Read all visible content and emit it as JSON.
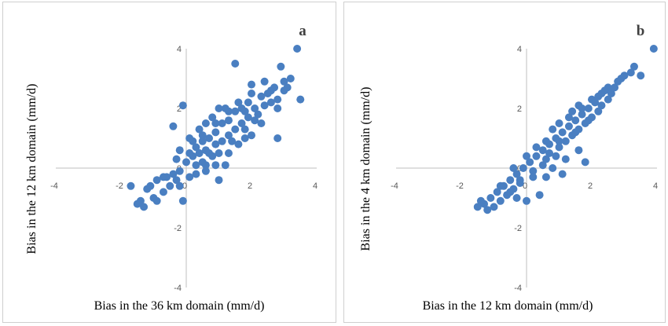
{
  "colors": {
    "marker": "#4a7fc1",
    "axis": "#bfbfbf",
    "border": "#cfcfcf"
  },
  "chart_data": [
    {
      "type": "scatter",
      "panel_label": "a",
      "xlabel": "Bias in the 36 km domain (mm/d)",
      "ylabel": "Bias in the 12 km domain (mm/d)",
      "xlim": [
        -4,
        4
      ],
      "ylim": [
        -4,
        4
      ],
      "xticks": [
        "-4",
        "-2",
        "0",
        "2",
        "4"
      ],
      "yticks": [
        "-4",
        "-2",
        "0",
        "2",
        "4"
      ],
      "grid": false,
      "legend": "none",
      "points": [
        [
          3.4,
          4.0
        ],
        [
          2.9,
          3.4
        ],
        [
          1.5,
          3.5
        ],
        [
          3.5,
          2.3
        ],
        [
          2.8,
          1.0
        ],
        [
          1.8,
          1.0
        ],
        [
          2.6,
          2.6
        ],
        [
          2.3,
          2.4
        ],
        [
          3.0,
          2.9
        ],
        [
          2.0,
          2.5
        ],
        [
          -0.1,
          2.1
        ],
        [
          -0.4,
          1.4
        ],
        [
          0.6,
          0.6
        ],
        [
          0.8,
          0.4
        ],
        [
          1.2,
          0.1
        ],
        [
          1.0,
          -0.4
        ],
        [
          -0.1,
          -1.1
        ],
        [
          -1.3,
          -1.3
        ],
        [
          -1.4,
          -1.1
        ],
        [
          -1.1,
          -0.6
        ],
        [
          -1.0,
          -1.0
        ],
        [
          -1.7,
          -0.6
        ],
        [
          -0.7,
          -0.8
        ],
        [
          -0.9,
          -0.4
        ],
        [
          -0.6,
          -0.3
        ],
        [
          -0.5,
          -0.6
        ],
        [
          -0.3,
          -0.4
        ],
        [
          -0.2,
          -0.1
        ],
        [
          0.0,
          0.2
        ],
        [
          0.2,
          0.4
        ],
        [
          0.3,
          0.1
        ],
        [
          0.4,
          0.5
        ],
        [
          0.5,
          0.9
        ],
        [
          0.5,
          0.2
        ],
        [
          0.7,
          1.0
        ],
        [
          0.7,
          0.5
        ],
        [
          0.9,
          1.2
        ],
        [
          0.9,
          0.8
        ],
        [
          1.1,
          1.5
        ],
        [
          1.1,
          0.9
        ],
        [
          1.3,
          1.6
        ],
        [
          1.3,
          1.1
        ],
        [
          1.5,
          1.9
        ],
        [
          1.5,
          1.3
        ],
        [
          1.7,
          2.0
        ],
        [
          1.7,
          1.5
        ],
        [
          1.9,
          2.2
        ],
        [
          1.9,
          1.7
        ],
        [
          2.1,
          2.0
        ],
        [
          2.2,
          1.8
        ],
        [
          2.4,
          2.1
        ],
        [
          2.5,
          2.5
        ],
        [
          2.7,
          2.7
        ],
        [
          2.6,
          2.2
        ],
        [
          2.8,
          2.3
        ],
        [
          3.0,
          2.6
        ],
        [
          0.2,
          0.9
        ],
        [
          0.4,
          1.3
        ],
        [
          0.6,
          1.5
        ],
        [
          0.8,
          1.7
        ],
        [
          1.0,
          2.0
        ],
        [
          1.2,
          2.0
        ],
        [
          0.3,
          -0.2
        ],
        [
          0.6,
          -0.1
        ],
        [
          0.9,
          0.1
        ],
        [
          1.3,
          0.5
        ],
        [
          1.6,
          0.8
        ],
        [
          2.0,
          1.1
        ],
        [
          2.3,
          1.5
        ],
        [
          -0.2,
          0.6
        ],
        [
          0.1,
          1.0
        ],
        [
          -0.3,
          0.3
        ],
        [
          -0.7,
          -0.3
        ],
        [
          -1.2,
          -0.7
        ],
        [
          -1.5,
          -1.2
        ],
        [
          -0.9,
          -1.1
        ],
        [
          -0.2,
          -0.6
        ],
        [
          0.1,
          -0.3
        ],
        [
          0.6,
          0.1
        ],
        [
          1.0,
          0.5
        ],
        [
          1.4,
          0.9
        ],
        [
          1.8,
          1.3
        ],
        [
          2.1,
          1.6
        ],
        [
          1.6,
          2.2
        ],
        [
          1.3,
          1.9
        ],
        [
          0.9,
          1.5
        ],
        [
          0.5,
          1.1
        ],
        [
          0.1,
          0.5
        ],
        [
          2.4,
          2.9
        ],
        [
          3.2,
          3.0
        ],
        [
          3.1,
          2.7
        ],
        [
          2.8,
          2.0
        ],
        [
          2.0,
          2.8
        ],
        [
          1.8,
          1.9
        ],
        [
          0.3,
          0.7
        ],
        [
          -0.4,
          -0.2
        ]
      ]
    },
    {
      "type": "scatter",
      "panel_label": "b",
      "xlabel": "Bias in the 12 km domain (mm/d)",
      "ylabel": "Bias in the 4 km domain (mm/d)",
      "xlim": [
        -4,
        4
      ],
      "ylim": [
        -4,
        4
      ],
      "xticks": [
        "-4",
        "-2",
        "0",
        "2",
        "4"
      ],
      "yticks": [
        "-4",
        "-2",
        "0",
        "2",
        "4"
      ],
      "grid": false,
      "legend": "none",
      "points": [
        [
          3.9,
          4.0
        ],
        [
          3.3,
          3.4
        ],
        [
          3.5,
          3.1
        ],
        [
          3.2,
          3.2
        ],
        [
          2.9,
          3.0
        ],
        [
          2.5,
          2.7
        ],
        [
          2.3,
          2.5
        ],
        [
          2.5,
          2.3
        ],
        [
          2.1,
          2.2
        ],
        [
          1.9,
          2.0
        ],
        [
          2.2,
          1.9
        ],
        [
          1.7,
          1.8
        ],
        [
          1.5,
          1.6
        ],
        [
          1.8,
          1.5
        ],
        [
          1.3,
          1.4
        ],
        [
          1.1,
          1.2
        ],
        [
          1.4,
          1.1
        ],
        [
          0.9,
          1.0
        ],
        [
          0.7,
          0.8
        ],
        [
          1.0,
          0.7
        ],
        [
          0.5,
          0.6
        ],
        [
          0.3,
          0.4
        ],
        [
          0.6,
          0.3
        ],
        [
          0.1,
          0.2
        ],
        [
          -0.1,
          0.0
        ],
        [
          0.2,
          -0.1
        ],
        [
          -0.3,
          -0.2
        ],
        [
          -0.5,
          -0.4
        ],
        [
          -0.2,
          -0.5
        ],
        [
          -0.7,
          -0.6
        ],
        [
          -0.9,
          -0.8
        ],
        [
          -0.6,
          -0.9
        ],
        [
          -1.1,
          -1.0
        ],
        [
          -1.3,
          -1.2
        ],
        [
          -1.0,
          -1.3
        ],
        [
          -1.5,
          -1.3
        ],
        [
          -1.2,
          -1.4
        ],
        [
          -0.8,
          -0.6
        ],
        [
          -0.4,
          -0.7
        ],
        [
          -0.3,
          -1.0
        ],
        [
          0.0,
          -1.1
        ],
        [
          0.4,
          -0.9
        ],
        [
          0.6,
          -0.3
        ],
        [
          0.9,
          0.4
        ],
        [
          1.6,
          0.6
        ],
        [
          1.8,
          0.2
        ],
        [
          1.1,
          -0.2
        ],
        [
          0.8,
          0.0
        ],
        [
          1.2,
          0.3
        ],
        [
          0.8,
          1.3
        ],
        [
          1.0,
          1.5
        ],
        [
          1.4,
          1.9
        ],
        [
          1.6,
          2.1
        ],
        [
          2.0,
          2.3
        ],
        [
          2.4,
          2.6
        ],
        [
          2.7,
          2.7
        ],
        [
          2.0,
          1.7
        ],
        [
          1.6,
          1.3
        ],
        [
          1.2,
          0.9
        ],
        [
          0.5,
          0.1
        ],
        [
          0.2,
          -0.3
        ],
        [
          -0.2,
          -0.4
        ],
        [
          -0.5,
          -0.8
        ],
        [
          0.3,
          0.7
        ],
        [
          0.0,
          0.4
        ],
        [
          -0.4,
          0.0
        ],
        [
          0.6,
          0.9
        ],
        [
          1.3,
          1.7
        ],
        [
          1.7,
          2.0
        ],
        [
          2.2,
          2.4
        ],
        [
          2.6,
          2.5
        ],
        [
          2.8,
          2.9
        ],
        [
          3.0,
          3.1
        ],
        [
          1.5,
          1.2
        ],
        [
          0.7,
          0.5
        ],
        [
          -0.8,
          -1.1
        ],
        [
          -1.4,
          -1.1
        ],
        [
          1.9,
          1.6
        ],
        [
          2.3,
          2.1
        ],
        [
          1.0,
          0.9
        ]
      ]
    }
  ]
}
